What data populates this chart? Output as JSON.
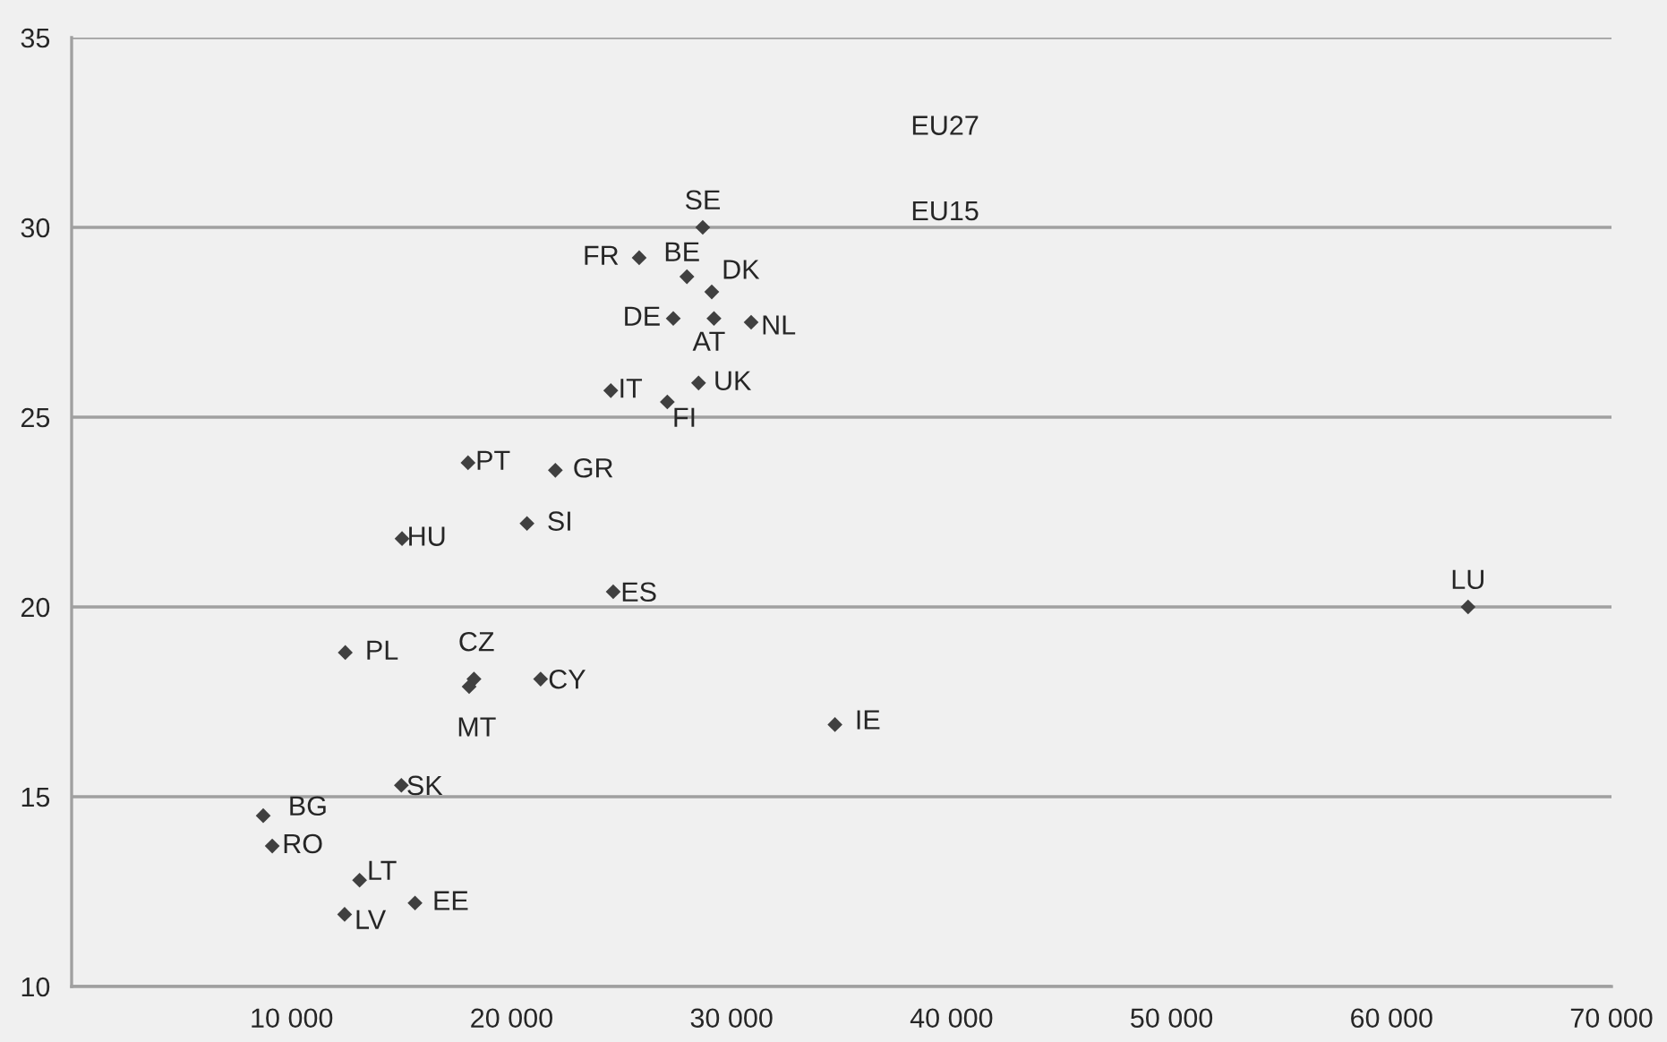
{
  "chart_data": {
    "type": "scatter",
    "series": [
      {
        "color": "#404040",
        "x": [
          28690,
          25800,
          27970,
          29100,
          27350,
          29200,
          30890,
          24510,
          28500,
          27080,
          18020,
          21990,
          20700,
          15020,
          24620,
          12440,
          18290,
          18070,
          21320,
          34700,
          14990,
          8710,
          9120,
          13090,
          15610,
          12410,
          63480
        ],
        "values": [
          30.0,
          29.2,
          28.7,
          28.3,
          27.6,
          27.6,
          27.5,
          25.7,
          25.9,
          25.4,
          23.8,
          23.6,
          22.2,
          21.8,
          20.4,
          18.8,
          18.1,
          17.9,
          18.1,
          16.9,
          15.3,
          14.5,
          13.7,
          12.8,
          12.2,
          11.9,
          20.0
        ]
      }
    ],
    "annotations": [
      {
        "text": "SE",
        "x": 28690,
        "y": 30.0
      },
      {
        "text": "FR",
        "x": 25800,
        "y": 29.2
      },
      {
        "text": "BE",
        "x": 27970,
        "y": 28.7
      },
      {
        "text": "DK",
        "x": 29100,
        "y": 28.3
      },
      {
        "text": "DE",
        "x": 27350,
        "y": 27.6
      },
      {
        "text": "AT",
        "x": 29200,
        "y": 27.6
      },
      {
        "text": "NL",
        "x": 30890,
        "y": 27.5
      },
      {
        "text": "IT",
        "x": 24510,
        "y": 25.7
      },
      {
        "text": "UK",
        "x": 28500,
        "y": 25.9
      },
      {
        "text": "FI",
        "x": 27080,
        "y": 25.4
      },
      {
        "text": "PT",
        "x": 18020,
        "y": 23.8
      },
      {
        "text": "GR",
        "x": 21990,
        "y": 23.6
      },
      {
        "text": "SI",
        "x": 20700,
        "y": 22.2
      },
      {
        "text": "HU",
        "x": 15020,
        "y": 21.8
      },
      {
        "text": "ES",
        "x": 24620,
        "y": 20.4
      },
      {
        "text": "PL",
        "x": 12440,
        "y": 18.8
      },
      {
        "text": "CZ",
        "x": 18290,
        "y": 18.1
      },
      {
        "text": "MT",
        "x": 18070,
        "y": 17.9
      },
      {
        "text": "CY",
        "x": 21320,
        "y": 18.1
      },
      {
        "text": "IE",
        "x": 34700,
        "y": 16.9
      },
      {
        "text": "SK",
        "x": 14990,
        "y": 15.3
      },
      {
        "text": "BG",
        "x": 8710,
        "y": 14.5
      },
      {
        "text": "RO",
        "x": 9120,
        "y": 13.7
      },
      {
        "text": "LT",
        "x": 13090,
        "y": 12.8
      },
      {
        "text": "EE",
        "x": 15610,
        "y": 12.2
      },
      {
        "text": "LV",
        "x": 12410,
        "y": 11.9
      },
      {
        "text": "LU",
        "x": 63480,
        "y": 20.0
      },
      "EU27",
      "EU15"
    ],
    "xlim": [
      0,
      70000
    ],
    "xticks": [
      {
        "value": 10000,
        "label": "10 000"
      },
      {
        "value": 20000,
        "label": "20 000"
      },
      {
        "value": 30000,
        "label": "30 000"
      },
      {
        "value": 40000,
        "label": "40 000"
      },
      {
        "value": 50000,
        "label": "50 000"
      },
      {
        "value": 60000,
        "label": "60 000"
      },
      {
        "value": 70000,
        "label": "70 000"
      }
    ],
    "ylim": [
      10,
      35
    ],
    "yticks": [
      10,
      15,
      20,
      25,
      30,
      35
    ],
    "grid": "y",
    "marker": "diamond"
  }
}
